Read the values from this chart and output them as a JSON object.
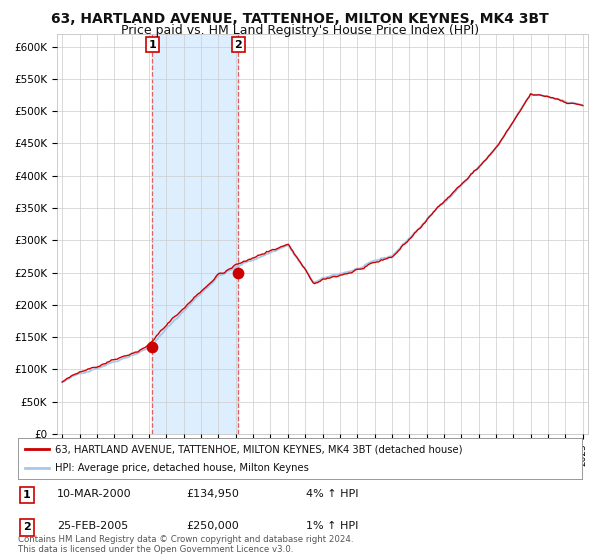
{
  "title": "63, HARTLAND AVENUE, TATTENHOE, MILTON KEYNES, MK4 3BT",
  "subtitle": "Price paid vs. HM Land Registry's House Price Index (HPI)",
  "ylim": [
    0,
    620000
  ],
  "yticks": [
    0,
    50000,
    100000,
    150000,
    200000,
    250000,
    300000,
    350000,
    400000,
    450000,
    500000,
    550000,
    600000
  ],
  "ytick_labels": [
    "£0",
    "£50K",
    "£100K",
    "£150K",
    "£200K",
    "£250K",
    "£300K",
    "£350K",
    "£400K",
    "£450K",
    "£500K",
    "£550K",
    "£600K"
  ],
  "hpi_color": "#a8c8e8",
  "price_color": "#cc0000",
  "marker_color": "#cc0000",
  "vline_color": "#e06060",
  "shade_color": "#ddeeff",
  "grid_color": "#cccccc",
  "background_color": "#ffffff",
  "purchase1_year": 2000.19,
  "purchase1_price": 134950,
  "purchase2_year": 2005.15,
  "purchase2_price": 250000,
  "legend_line1": "63, HARTLAND AVENUE, TATTENHOE, MILTON KEYNES, MK4 3BT (detached house)",
  "legend_line2": "HPI: Average price, detached house, Milton Keynes",
  "table_row1": [
    "1",
    "10-MAR-2000",
    "£134,950",
    "4% ↑ HPI"
  ],
  "table_row2": [
    "2",
    "25-FEB-2005",
    "£250,000",
    "1% ↑ HPI"
  ],
  "footnote": "Contains HM Land Registry data © Crown copyright and database right 2024.\nThis data is licensed under the Open Government Licence v3.0.",
  "title_fontsize": 10,
  "subtitle_fontsize": 9
}
